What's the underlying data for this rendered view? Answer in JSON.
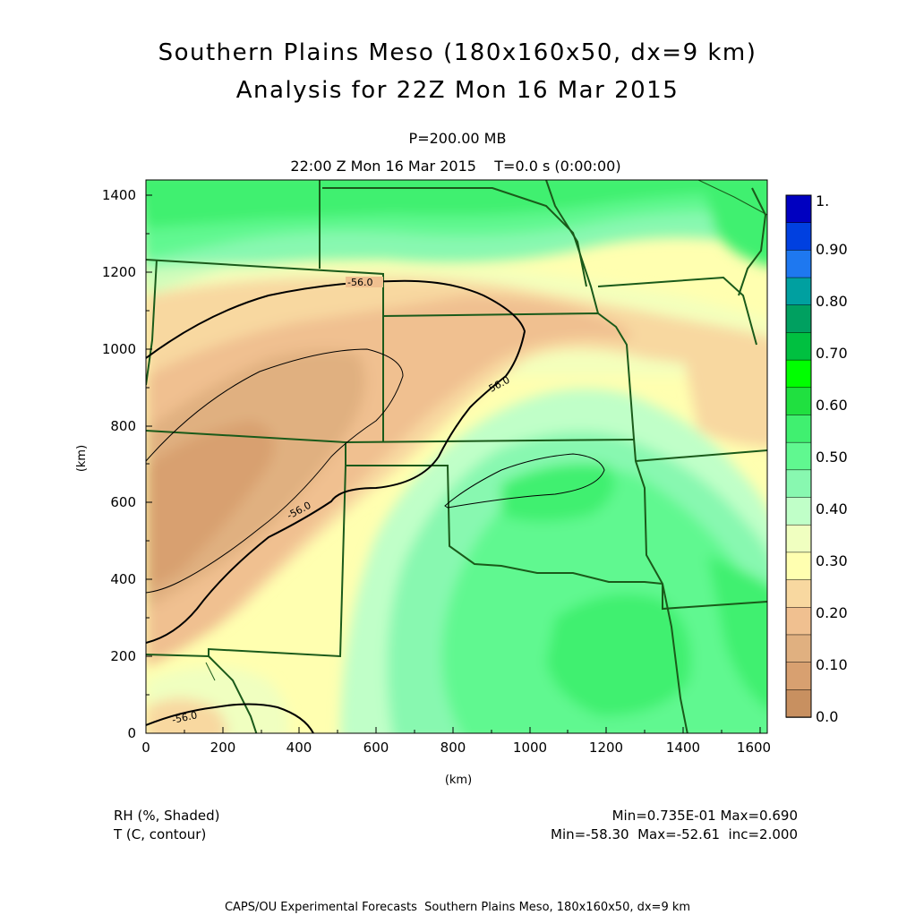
{
  "title_line1": "Southern Plains Meso (180x160x50, dx=9 km)",
  "title_line2": "Analysis for 22Z Mon 16 Mar 2015",
  "level": "P=200.00 MB",
  "valid_time": "22:00 Z Mon 16 Mar 2015    T=0.0 s (0:00:00)",
  "x_axis": {
    "label": "(km)",
    "ticks": [
      "0",
      "200",
      "400",
      "600",
      "800",
      "1000",
      "1200",
      "1400",
      "1600"
    ],
    "range_km": [
      0,
      1620
    ]
  },
  "y_axis": {
    "label": "(km)",
    "ticks": [
      "0",
      "200",
      "400",
      "600",
      "800",
      "1000",
      "1200",
      "1400"
    ],
    "range_km": [
      0,
      1440
    ]
  },
  "colorbar": {
    "labels": [
      "1.",
      "0.90",
      "0.80",
      "0.70",
      "0.60",
      "0.50",
      "0.40",
      "0.30",
      "0.20",
      "0.10",
      "0.0"
    ],
    "colors": [
      "#0000c0",
      "#0040e0",
      "#1e78f0",
      "#00a0a0",
      "#00a060",
      "#00c040",
      "#00ff00",
      "#20e040",
      "#40f070",
      "#60f890",
      "#88f8b0",
      "#c0ffc8",
      "#f0ffc0",
      "#ffffb0",
      "#f8d8a0",
      "#f0c090",
      "#e0b080",
      "#d8a070",
      "#c89060"
    ]
  },
  "contour_labels": [
    "-56.0",
    "-56.0",
    "-56.0",
    "-56.0"
  ],
  "legend": {
    "shaded_name": "RH (%, Shaded)",
    "shaded_range": "Min=0.735E-01 Max=0.690",
    "contour_name": "T (C, contour)",
    "contour_range": "Min=-58.30  Max=-52.61  inc=2.000"
  },
  "footer": "CAPS/OU Experimental Forecasts  Southern Plains Meso, 180x160x50, dx=9 km"
}
